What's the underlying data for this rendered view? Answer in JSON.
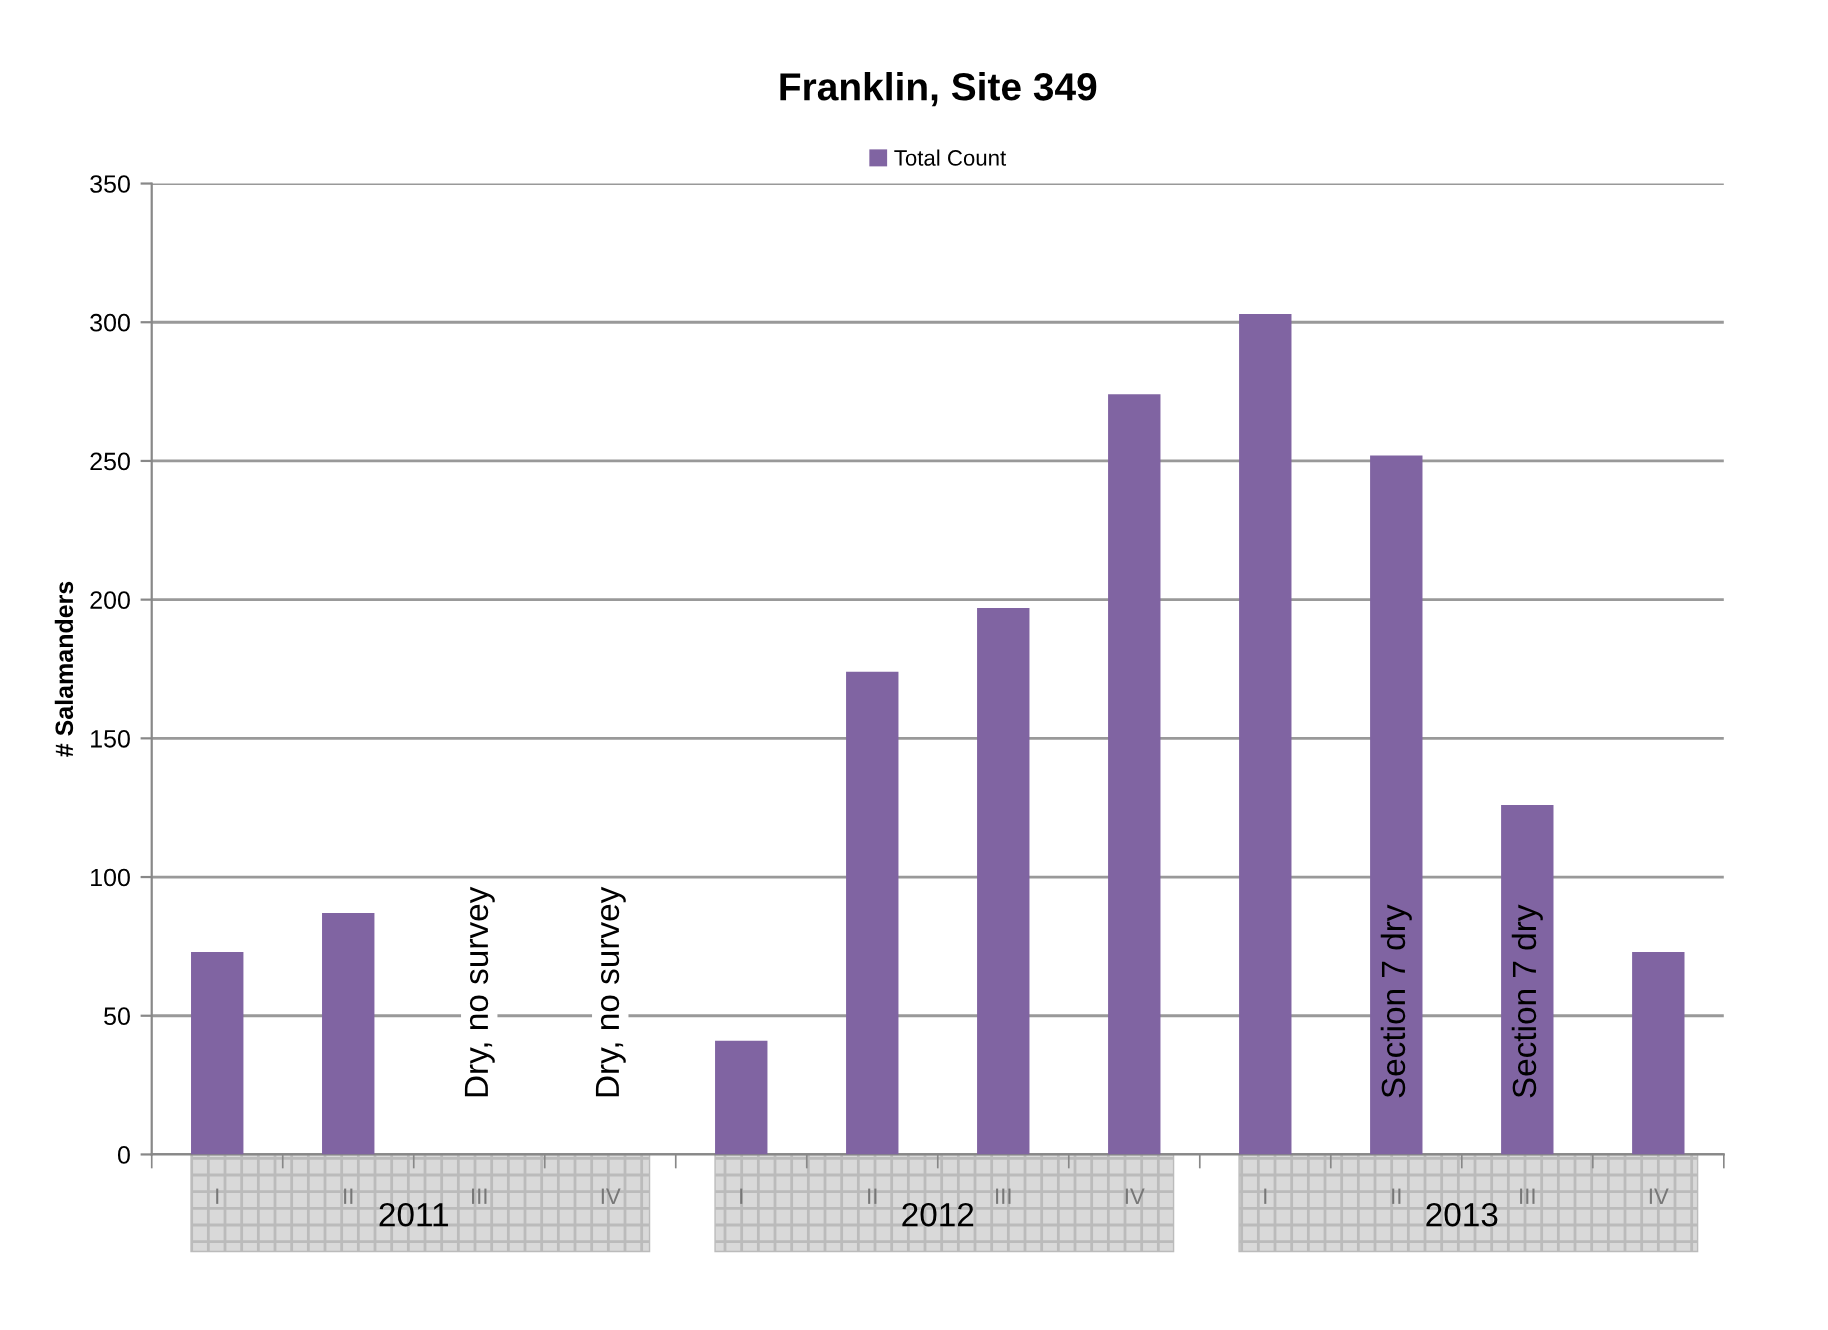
{
  "chart_data": {
    "type": "bar",
    "title": "Franklin, Site 349",
    "ylabel": "# Salamanders",
    "categories": [
      "I",
      "II",
      "III",
      "IV",
      "I",
      "II",
      "III",
      "IV",
      "I",
      "II",
      "III",
      "IV"
    ],
    "series": [
      {
        "name": "Total Count",
        "color": "#8064a2",
        "values": [
          73,
          87,
          null,
          null,
          41,
          174,
          197,
          274,
          303,
          252,
          126,
          73
        ],
        "value_labels": [
          null,
          null,
          "Dry, no survey",
          "Dry, no survey",
          null,
          null,
          null,
          null,
          null,
          "Section 7 dry",
          "Section 7 dry",
          null
        ]
      }
    ],
    "ylim": [
      0,
      350
    ],
    "yticks": [
      0,
      50,
      100,
      150,
      200,
      250,
      300,
      350
    ],
    "grid": "y",
    "legend": "top",
    "annotations": [
      "2011",
      "2012",
      "2013"
    ]
  }
}
